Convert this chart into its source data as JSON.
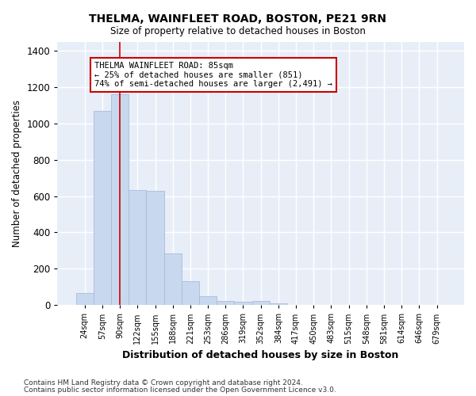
{
  "title": "THELMA, WAINFLEET ROAD, BOSTON, PE21 9RN",
  "subtitle": "Size of property relative to detached houses in Boston",
  "xlabel": "Distribution of detached houses by size in Boston",
  "ylabel": "Number of detached properties",
  "categories": [
    "24sqm",
    "57sqm",
    "90sqm",
    "122sqm",
    "155sqm",
    "188sqm",
    "221sqm",
    "253sqm",
    "286sqm",
    "319sqm",
    "352sqm",
    "384sqm",
    "417sqm",
    "450sqm",
    "483sqm",
    "515sqm",
    "548sqm",
    "581sqm",
    "614sqm",
    "646sqm",
    "679sqm"
  ],
  "values": [
    65,
    1070,
    1160,
    635,
    630,
    285,
    130,
    48,
    22,
    18,
    22,
    12,
    0,
    0,
    0,
    0,
    0,
    0,
    0,
    0,
    0
  ],
  "bar_color": "#c8d8ee",
  "bar_edge_color": "#aabbdd",
  "vline_x_index": 2,
  "vline_color": "#cc0000",
  "annotation_text": "THELMA WAINFLEET ROAD: 85sqm\n← 25% of detached houses are smaller (851)\n74% of semi-detached houses are larger (2,491) →",
  "annotation_box_edgecolor": "#cc0000",
  "ylim": [
    0,
    1450
  ],
  "yticks": [
    0,
    200,
    400,
    600,
    800,
    1000,
    1200,
    1400
  ],
  "axes_bg_color": "#e8eef8",
  "grid_color": "#ffffff",
  "fig_bg_color": "#ffffff",
  "footer_line1": "Contains HM Land Registry data © Crown copyright and database right 2024.",
  "footer_line2": "Contains public sector information licensed under the Open Government Licence v3.0."
}
